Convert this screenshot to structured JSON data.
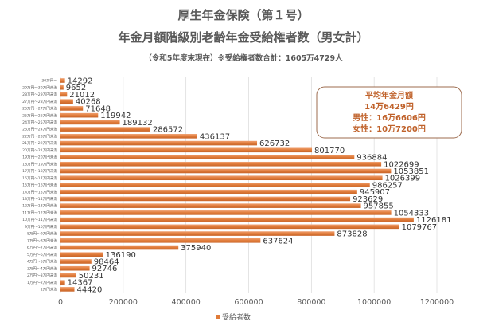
{
  "chart_data": {
    "type": "bar",
    "orientation": "horizontal",
    "title": "厚生年金保険（第１号）",
    "subtitle": "年金月額階級別老齢年金受給権者数（男女計）",
    "caption": "（令和5年度末現在）※受給権者数合計：1605万4729人",
    "categories": [
      "30万円～",
      "29万円～30万円未満",
      "28万円～29万円未満",
      "27万円～28万円未満",
      "26万円～27万円未満",
      "25万円～26万円未満",
      "24万円～25万円未満",
      "23万円～24万円未満",
      "22万円～23万円未満",
      "21万円～22万円未満",
      "20万円～21万円未満",
      "19万円～20万円未満",
      "18万円～19万円未満",
      "17万円～18万円未満",
      "16万円～17万円未満",
      "15万円～16万円未満",
      "14万円～15万円未満",
      "13万円～14万円未満",
      "12万円～13万円未満",
      "11万円～12万円未満",
      "10万円～11万円未満",
      "9万円～10万円未満",
      "8万円～9万円未満",
      "7万円～8万円未満",
      "6万円～7万円未満",
      "5万円～6万円未満",
      "4万円～5万円未満",
      "3万円～4万円未満",
      "2万円～3万円未満",
      "1万円～2万円未満",
      "1万円未満"
    ],
    "series": [
      {
        "name": "受給者数",
        "values": [
          14292,
          9652,
          21012,
          40268,
          71648,
          119942,
          189132,
          286572,
          436137,
          626732,
          801770,
          936884,
          1022699,
          1053851,
          1026399,
          986257,
          945907,
          923629,
          957855,
          1054333,
          1126181,
          1079767,
          873828,
          637624,
          375940,
          136190,
          98464,
          92746,
          50231,
          14367,
          44420
        ]
      }
    ],
    "xlim": [
      0,
      1200000
    ],
    "xticks": [
      "0",
      "200000",
      "400000",
      "600000",
      "800000",
      "1000000",
      "1200000"
    ],
    "grid": true,
    "legend": "bottom",
    "bar_color": "#E07B39",
    "annotation": {
      "lines": [
        "平均年金月額",
        "14万6429円",
        "男性：16万6606円",
        "女性：10万7200円"
      ],
      "color": "#C0622B"
    }
  }
}
